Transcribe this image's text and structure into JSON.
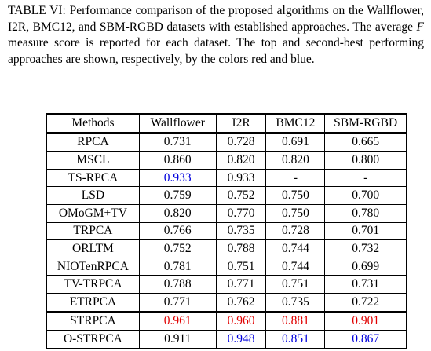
{
  "caption": {
    "part1": "TABLE VI: Performance comparison of the proposed algorithms on the Wallflower, I2R, BMC12, and SBM-RGBD datasets with established approaches. The average ",
    "emph": "F",
    "part2": " measure score is reported for each dataset. The top and second-best performing approaches are shown, respectively, by the colors red and blue."
  },
  "colors": {
    "best": "#e00000",
    "second": "#0000dd"
  },
  "table": {
    "headers": [
      "Methods",
      "Wallflower",
      "I2R",
      "BMC12",
      "SBM-RGBD"
    ],
    "rows": [
      {
        "cells": [
          "RPCA",
          "0.731",
          "0.728",
          "0.691",
          "0.665"
        ],
        "highlight": [
          "",
          "",
          "",
          "",
          ""
        ]
      },
      {
        "cells": [
          "MSCL",
          "0.860",
          "0.820",
          "0.820",
          "0.800"
        ],
        "highlight": [
          "",
          "",
          "",
          "",
          ""
        ]
      },
      {
        "cells": [
          "TS-RPCA",
          "0.933",
          "0.933",
          "-",
          "-"
        ],
        "highlight": [
          "",
          "blue",
          "",
          "",
          ""
        ]
      },
      {
        "cells": [
          "LSD",
          "0.759",
          "0.752",
          "0.750",
          "0.700"
        ],
        "highlight": [
          "",
          "",
          "",
          "",
          ""
        ]
      },
      {
        "cells": [
          "OMoGM+TV",
          "0.820",
          "0.770",
          "0.750",
          "0.780"
        ],
        "highlight": [
          "",
          "",
          "",
          "",
          ""
        ]
      },
      {
        "cells": [
          "TRPCA",
          "0.766",
          "0.735",
          "0.728",
          "0.701"
        ],
        "highlight": [
          "",
          "",
          "",
          "",
          ""
        ]
      },
      {
        "cells": [
          "ORLTM",
          "0.752",
          "0.788",
          "0.744",
          "0.732"
        ],
        "highlight": [
          "",
          "",
          "",
          "",
          ""
        ]
      },
      {
        "cells": [
          "NIOTenRPCA",
          "0.781",
          "0.751",
          "0.744",
          "0.699"
        ],
        "highlight": [
          "",
          "",
          "",
          "",
          ""
        ]
      },
      {
        "cells": [
          "TV-TRPCA",
          "0.788",
          "0.771",
          "0.751",
          "0.731"
        ],
        "highlight": [
          "",
          "",
          "",
          "",
          ""
        ]
      },
      {
        "cells": [
          "ETRPCA",
          "0.771",
          "0.762",
          "0.735",
          "0.722"
        ],
        "highlight": [
          "",
          "",
          "",
          "",
          ""
        ]
      },
      {
        "cells": [
          "STRPCA",
          "0.961",
          "0.960",
          "0.881",
          "0.901"
        ],
        "highlight": [
          "",
          "red",
          "red",
          "red",
          "red"
        ]
      },
      {
        "cells": [
          "O-STRPCA",
          "0.911",
          "0.948",
          "0.851",
          "0.867"
        ],
        "highlight": [
          "",
          "",
          "blue",
          "blue",
          "blue"
        ]
      }
    ]
  }
}
